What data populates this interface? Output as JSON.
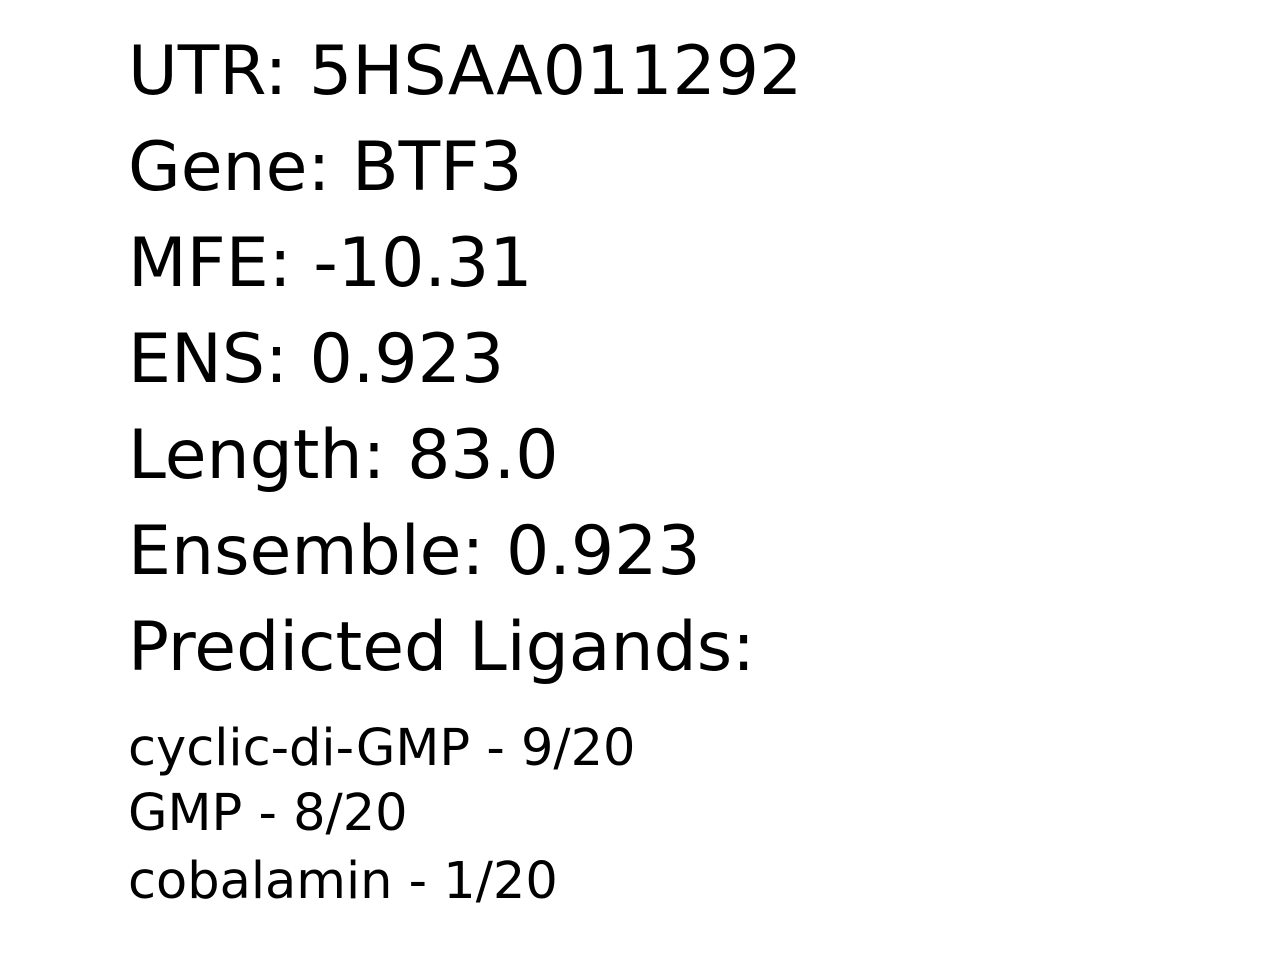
{
  "info": {
    "utr": "UTR: 5HSAA011292",
    "gene": "Gene: BTF3",
    "mfe": "MFE: -10.31",
    "ens": "ENS: 0.923",
    "length": "Length: 83.0",
    "ensemble": "Ensemble: 0.923",
    "ligands_heading": "Predicted Ligands:"
  },
  "ligands": [
    "cyclic-di-GMP - 9/20",
    "GMP - 8/20",
    "cobalamin - 1/20"
  ]
}
